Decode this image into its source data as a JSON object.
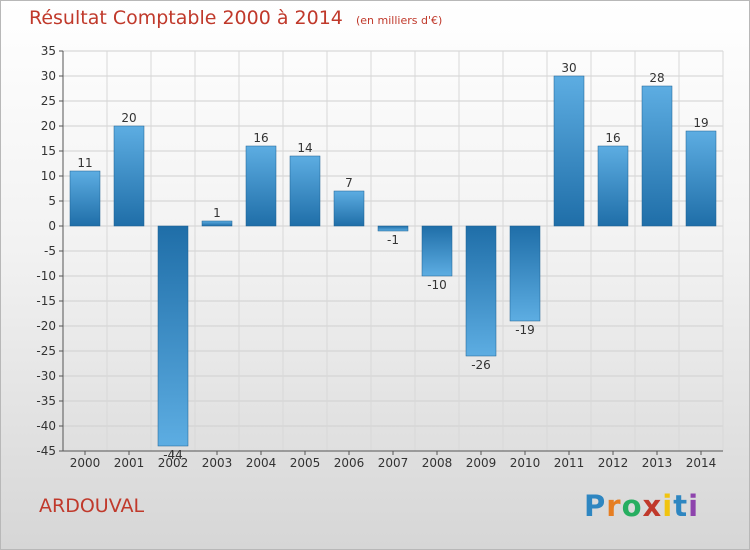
{
  "header": {
    "title": "Résultat Comptable 2000 à 2014",
    "subtitle": "(en milliers d'€)"
  },
  "footer": {
    "commune": "ARDOUVAL",
    "logo_text": "Proxiti",
    "logo_colors": [
      "#2e86c1",
      "#e67e22",
      "#27ae60",
      "#c0392b",
      "#f1c40f",
      "#2e86c1",
      "#8e44ad"
    ]
  },
  "colors": {
    "bar_light": "#5dade2",
    "bar_dark": "#1f6ea8",
    "title": "#c0392b",
    "axis_text": "#333333"
  },
  "chart_data": {
    "type": "bar",
    "categories": [
      "2000",
      "2001",
      "2002",
      "2003",
      "2004",
      "2005",
      "2006",
      "2007",
      "2008",
      "2009",
      "2010",
      "2011",
      "2012",
      "2013",
      "2014"
    ],
    "values": [
      11,
      20,
      -44,
      1,
      16,
      14,
      7,
      -1,
      -10,
      -26,
      -19,
      30,
      16,
      28,
      19
    ],
    "data_labels": [
      "11",
      "20",
      "-44",
      "1",
      "16",
      "14",
      "7",
      "-1",
      "-10",
      "-26",
      "-19",
      "30",
      "16",
      "28",
      "19"
    ],
    "ylim": [
      -45,
      35
    ],
    "yticks": [
      35,
      30,
      25,
      20,
      15,
      10,
      5,
      0,
      -5,
      -10,
      -15,
      -20,
      -25,
      -30,
      -35,
      -40,
      -45
    ],
    "ytick_labels": [
      "35",
      "30",
      "25",
      "20",
      "15",
      "10",
      "5",
      "0",
      "-5",
      "-10",
      "-15",
      "-20",
      "-25",
      "-30",
      "-35",
      "-40",
      "-45"
    ],
    "grid": true,
    "xlabel": "",
    "ylabel": ""
  }
}
